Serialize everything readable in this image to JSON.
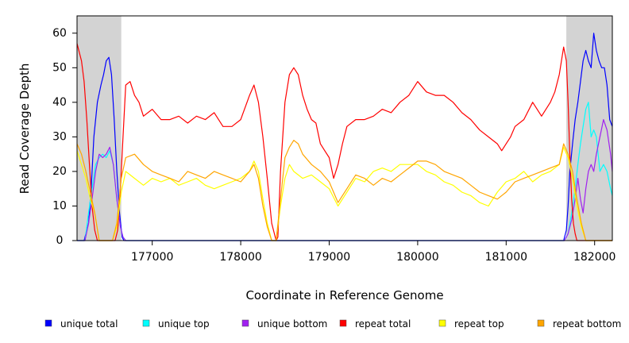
{
  "chart_data": {
    "type": "line",
    "title": "",
    "xlabel": "Coordinate in Reference Genome",
    "ylabel": "Read Coverage Depth",
    "xlim": [
      176150,
      182200
    ],
    "ylim": [
      0,
      65
    ],
    "x_ticks": [
      177000,
      178000,
      179000,
      180000,
      181000,
      182000
    ],
    "y_ticks": [
      0,
      10,
      20,
      30,
      40,
      50,
      60
    ],
    "grid": false,
    "legend_position": "bottom",
    "shaded_regions": [
      {
        "x0": 176150,
        "x1": 176650,
        "color": "#d3d3d3"
      },
      {
        "x0": 181680,
        "x1": 182200,
        "color": "#d3d3d3"
      }
    ],
    "series": [
      {
        "name": "unique total",
        "color": "#0000ff",
        "x": [
          176150,
          176230,
          176280,
          176310,
          176340,
          176380,
          176420,
          176450,
          176480,
          176510,
          176540,
          176570,
          176600,
          176630,
          176660,
          176680,
          177000,
          178000,
          179000,
          180000,
          181000,
          181650,
          181680,
          181700,
          181720,
          181750,
          181780,
          181810,
          181840,
          181870,
          181900,
          181930,
          181960,
          181990,
          182020,
          182050,
          182080,
          182110,
          182140,
          182170,
          182200
        ],
        "y": [
          0,
          0,
          5,
          15,
          30,
          40,
          45,
          48,
          52,
          53,
          48,
          35,
          20,
          8,
          1,
          0,
          0,
          0,
          0,
          0,
          0,
          0,
          3,
          10,
          20,
          28,
          35,
          40,
          46,
          52,
          55,
          52,
          50,
          60,
          55,
          52,
          50,
          50,
          45,
          35,
          33
        ]
      },
      {
        "name": "unique top",
        "color": "#00ffff",
        "x": [
          176150,
          176240,
          176280,
          176320,
          176360,
          176400,
          176440,
          176480,
          176520,
          176560,
          176600,
          176640,
          176670,
          176700,
          177000,
          178000,
          179000,
          180000,
          181000,
          181660,
          181700,
          181740,
          181780,
          181810,
          181840,
          181870,
          181900,
          181930,
          181960,
          181990,
          182020,
          182060,
          182100,
          182140,
          182180,
          182200
        ],
        "y": [
          0,
          0,
          8,
          15,
          22,
          24,
          25,
          24,
          26,
          22,
          12,
          4,
          1,
          0,
          0,
          0,
          0,
          0,
          0,
          0,
          2,
          8,
          15,
          22,
          28,
          33,
          38,
          40,
          30,
          32,
          30,
          20,
          22,
          20,
          15,
          13
        ]
      },
      {
        "name": "unique bottom",
        "color": "#a020f0",
        "x": [
          176150,
          176240,
          176280,
          176320,
          176360,
          176400,
          176440,
          176480,
          176520,
          176560,
          176600,
          176640,
          176670,
          176700,
          177000,
          178000,
          179000,
          180000,
          181000,
          181660,
          181700,
          181740,
          181780,
          181810,
          181840,
          181870,
          181900,
          181930,
          181960,
          181990,
          182020,
          182060,
          182100,
          182140,
          182180,
          182200
        ],
        "y": [
          0,
          0,
          5,
          12,
          20,
          25,
          24,
          25,
          27,
          22,
          12,
          4,
          1,
          0,
          0,
          0,
          0,
          0,
          0,
          0,
          2,
          6,
          12,
          18,
          12,
          8,
          15,
          20,
          22,
          20,
          25,
          30,
          35,
          32,
          25,
          20
        ]
      },
      {
        "name": "repeat total",
        "color": "#ff0000",
        "x": [
          176150,
          176200,
          176230,
          176260,
          176290,
          176320,
          176350,
          176380,
          176400,
          176430,
          176460,
          176490,
          176520,
          176550,
          176580,
          176610,
          176640,
          176670,
          176700,
          176750,
          176800,
          176850,
          176900,
          177000,
          177100,
          177200,
          177300,
          177400,
          177500,
          177600,
          177700,
          177800,
          177900,
          178000,
          178100,
          178150,
          178200,
          178250,
          178300,
          178350,
          178400,
          178420,
          178450,
          178500,
          178550,
          178600,
          178650,
          178700,
          178750,
          178800,
          178850,
          178900,
          178950,
          179000,
          179050,
          179100,
          179150,
          179200,
          179300,
          179400,
          179500,
          179600,
          179700,
          179800,
          179900,
          180000,
          180100,
          180200,
          180300,
          180400,
          180500,
          180600,
          180700,
          180800,
          180900,
          180950,
          181000,
          181050,
          181100,
          181200,
          181300,
          181400,
          181500,
          181550,
          181600,
          181650,
          181680,
          181700,
          181720,
          181740,
          181760,
          181780,
          181800,
          181830,
          181860,
          181900,
          182000,
          182100,
          182200
        ],
        "y": [
          57,
          52,
          46,
          35,
          22,
          10,
          3,
          0,
          0,
          0,
          0,
          0,
          0,
          0,
          0,
          3,
          15,
          30,
          45,
          46,
          42,
          40,
          36,
          38,
          35,
          35,
          36,
          34,
          36,
          35,
          37,
          33,
          33,
          35,
          42,
          45,
          40,
          30,
          18,
          5,
          0,
          1,
          20,
          40,
          48,
          50,
          48,
          42,
          38,
          35,
          34,
          28,
          26,
          24,
          18,
          22,
          28,
          33,
          35,
          35,
          36,
          38,
          37,
          40,
          42,
          46,
          43,
          42,
          42,
          40,
          37,
          35,
          32,
          30,
          28,
          26,
          28,
          30,
          33,
          35,
          40,
          36,
          40,
          43,
          48,
          56,
          52,
          40,
          25,
          12,
          5,
          2,
          0,
          0,
          0,
          0,
          0,
          0,
          0
        ]
      },
      {
        "name": "repeat top",
        "color": "#ffff00",
        "x": [
          176150,
          176200,
          176250,
          176300,
          176350,
          176400,
          176450,
          176500,
          176550,
          176600,
          176650,
          176700,
          176800,
          176900,
          177000,
          177100,
          177200,
          177300,
          177400,
          177500,
          177600,
          177700,
          177800,
          177900,
          178000,
          178100,
          178150,
          178200,
          178250,
          178300,
          178350,
          178400,
          178450,
          178500,
          178550,
          178600,
          178700,
          178800,
          178900,
          179000,
          179100,
          179200,
          179300,
          179400,
          179500,
          179600,
          179700,
          179800,
          179900,
          180000,
          180100,
          180200,
          180300,
          180400,
          180500,
          180600,
          180700,
          180800,
          180900,
          181000,
          181100,
          181200,
          181300,
          181400,
          181500,
          181600,
          181650,
          181700,
          181750,
          181800,
          181850,
          181900,
          182000,
          182100,
          182200
        ],
        "y": [
          26,
          22,
          18,
          12,
          8,
          0,
          0,
          0,
          0,
          4,
          14,
          20,
          18,
          16,
          18,
          17,
          18,
          16,
          17,
          18,
          16,
          15,
          16,
          17,
          18,
          20,
          23,
          20,
          12,
          5,
          0,
          0,
          10,
          18,
          22,
          20,
          18,
          19,
          17,
          15,
          10,
          14,
          18,
          17,
          20,
          21,
          20,
          22,
          22,
          22,
          20,
          19,
          17,
          16,
          14,
          13,
          11,
          10,
          14,
          17,
          18,
          20,
          17,
          19,
          20,
          22,
          27,
          24,
          18,
          10,
          4,
          0,
          0,
          0,
          0
        ]
      },
      {
        "name": "repeat bottom",
        "color": "#ffa500",
        "x": [
          176150,
          176200,
          176250,
          176300,
          176350,
          176400,
          176450,
          176500,
          176550,
          176600,
          176650,
          176700,
          176800,
          176900,
          177000,
          177100,
          177200,
          177300,
          177400,
          177500,
          177600,
          177700,
          177800,
          177900,
          178000,
          178100,
          178150,
          178200,
          178250,
          178300,
          178350,
          178400,
          178450,
          178500,
          178550,
          178600,
          178650,
          178700,
          178800,
          178900,
          179000,
          179100,
          179200,
          179300,
          179400,
          179500,
          179600,
          179700,
          179800,
          179900,
          180000,
          180100,
          180200,
          180300,
          180400,
          180500,
          180600,
          180700,
          180800,
          180900,
          181000,
          181100,
          181200,
          181300,
          181400,
          181500,
          181600,
          181650,
          181700,
          181750,
          181800,
          181850,
          181900,
          182000,
          182100,
          182200
        ],
        "y": [
          28,
          25,
          20,
          14,
          8,
          0,
          0,
          0,
          0,
          5,
          18,
          24,
          25,
          22,
          20,
          19,
          18,
          17,
          20,
          19,
          18,
          20,
          19,
          18,
          17,
          20,
          22,
          18,
          10,
          4,
          0,
          0,
          12,
          24,
          27,
          29,
          28,
          25,
          22,
          20,
          17,
          11,
          15,
          19,
          18,
          16,
          18,
          17,
          19,
          21,
          23,
          23,
          22,
          20,
          19,
          18,
          16,
          14,
          13,
          12,
          14,
          17,
          18,
          19,
          20,
          21,
          22,
          28,
          25,
          20,
          12,
          5,
          0,
          0,
          0,
          0
        ]
      }
    ]
  }
}
